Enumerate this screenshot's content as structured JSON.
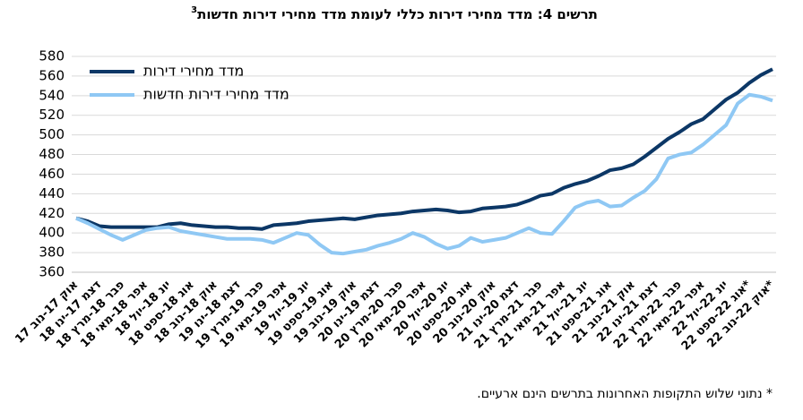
{
  "chart_data": {
    "type": "line",
    "title": "תרשים 4: מדד מחירי דירות כללי לעומת מדד מחירי דירות חדשות",
    "title_note": "3",
    "footnote": "* נתוני שלוש התקופות האחרונות בתרשים הינם ארעיים.",
    "categories": [
      "אוק 17-נוב 17",
      null,
      "דצמ 17-ינו 18",
      null,
      "פבר 18-מרץ 18",
      null,
      "אפר 18-מאי 18",
      null,
      "יונ 18-יול 18",
      null,
      "אוג 18-ספט 18",
      null,
      "אוק 18-נוב 18",
      null,
      "דצמ 18-ינו 19",
      null,
      "פבר 19-מרץ 19",
      null,
      "אפר 19-מאי 19",
      null,
      "יונ 19-יול 19",
      null,
      "אוג 19-ספט 19",
      null,
      "אוק 19-נוב 19",
      null,
      "דצמ 19-ינו 20",
      null,
      "פבר 20-מרץ 20",
      null,
      "אפר 20-מאי 20",
      null,
      "יונ 20-יול 20",
      null,
      "אוג 20-ספט 20",
      null,
      "אוק 20-נוב 20",
      null,
      "דצמ 20-ינו 21",
      null,
      "פבר 21-מרץ 21",
      null,
      "אפר 21-מאי 21",
      null,
      "יונ 21-יול 21",
      null,
      "אוג 21-ספט 21",
      null,
      "אוק 21-נוב 21",
      null,
      "דצמ 21-ינו 22",
      null,
      "פבר 22-מרץ 22",
      null,
      "אפר 22-מאי 22",
      null,
      "יונ 22-יול 22",
      null,
      "אוג 22-ספט 22*",
      null,
      "אוק 22-נוב 22*"
    ],
    "series": [
      {
        "name": "מדד מחירי דירות",
        "color": "#0c3766",
        "values": [
          415,
          412,
          407,
          406,
          406,
          406,
          406,
          406,
          409,
          410,
          408,
          407,
          406,
          406,
          405,
          405,
          404,
          408,
          409,
          410,
          412,
          413,
          414,
          415,
          414,
          416,
          418,
          419,
          420,
          422,
          423,
          424,
          423,
          421,
          422,
          425,
          426,
          427,
          429,
          433,
          438,
          440,
          446,
          450,
          453,
          458,
          464,
          466,
          470,
          478,
          487,
          496,
          503,
          511,
          516,
          526,
          536,
          543,
          553,
          561,
          567
        ]
      },
      {
        "name": "מדד מחירי דירות חדשות",
        "color": "#8fc8f4",
        "values": [
          415,
          410,
          404,
          398,
          393,
          398,
          403,
          405,
          406,
          402,
          400,
          398,
          396,
          394,
          394,
          394,
          393,
          390,
          395,
          400,
          398,
          388,
          380,
          379,
          381,
          383,
          387,
          390,
          394,
          400,
          396,
          389,
          384,
          387,
          395,
          391,
          393,
          395,
          400,
          405,
          400,
          399,
          412,
          426,
          431,
          433,
          427,
          428,
          436,
          443,
          455,
          476,
          480,
          482,
          490,
          500,
          510,
          532,
          541,
          539,
          535
        ]
      }
    ],
    "ylim": [
      360,
      580
    ],
    "yticks": [
      360,
      380,
      400,
      420,
      440,
      460,
      480,
      500,
      520,
      540,
      560,
      580
    ],
    "grid": true,
    "legend": "top-left"
  }
}
